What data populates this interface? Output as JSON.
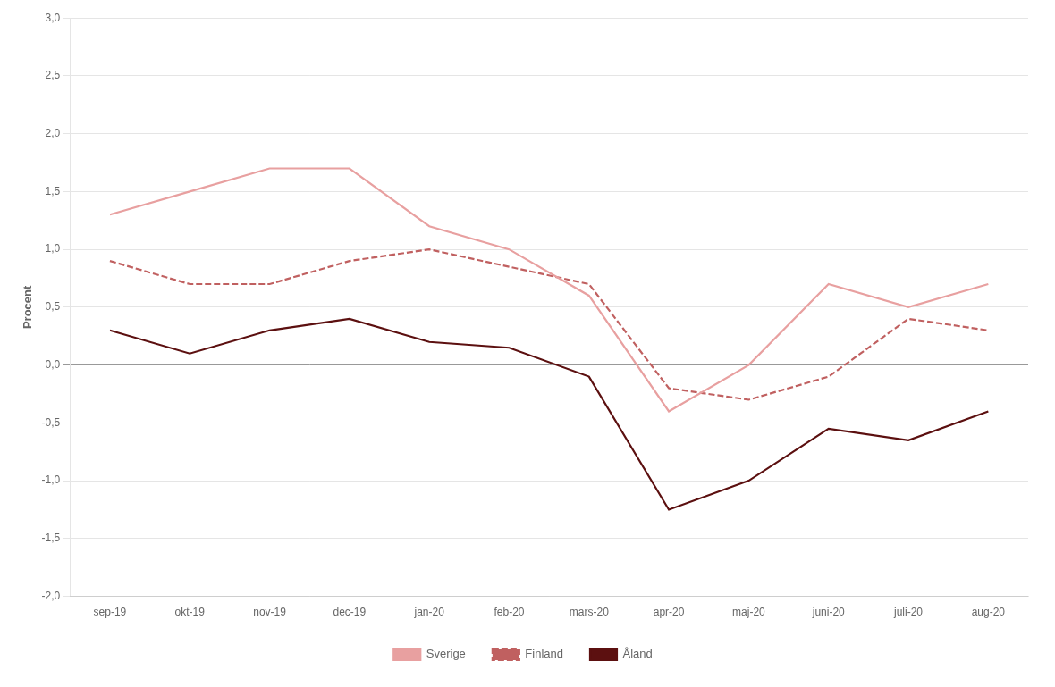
{
  "chart_data": {
    "type": "line",
    "categories": [
      "sep-19",
      "okt-19",
      "nov-19",
      "dec-19",
      "jan-20",
      "feb-20",
      "mars-20",
      "apr-20",
      "maj-20",
      "juni-20",
      "juli-20",
      "aug-20"
    ],
    "series": [
      {
        "name": "Sverige",
        "color": "#E8A0A0",
        "line_style": "solid",
        "values": [
          1.3,
          1.5,
          1.7,
          1.7,
          1.2,
          1.0,
          0.6,
          -0.4,
          0.0,
          0.7,
          0.5,
          0.7
        ]
      },
      {
        "name": "Finland",
        "color": "#C06060",
        "line_style": "dashed",
        "values": [
          0.9,
          0.7,
          0.7,
          0.9,
          1.0,
          0.85,
          0.7,
          -0.2,
          -0.3,
          -0.1,
          0.4,
          0.3
        ]
      },
      {
        "name": "Åland",
        "color": "#5C1010",
        "line_style": "solid",
        "values": [
          0.3,
          0.1,
          0.3,
          0.4,
          0.2,
          0.15,
          -0.1,
          -1.25,
          -1.0,
          -0.55,
          -0.65,
          -0.4
        ]
      }
    ],
    "ylabel": "Procent",
    "ylim": [
      -2.0,
      3.0
    ],
    "yticks": [
      {
        "value": -2.0,
        "label": "-2,0"
      },
      {
        "value": -1.5,
        "label": "-1,5"
      },
      {
        "value": -1.0,
        "label": "-1,0"
      },
      {
        "value": -0.5,
        "label": "-0,5"
      },
      {
        "value": 0.0,
        "label": "0,0"
      },
      {
        "value": 0.5,
        "label": "0,5"
      },
      {
        "value": 1.0,
        "label": "1,0"
      },
      {
        "value": 1.5,
        "label": "1,5"
      },
      {
        "value": 2.0,
        "label": "2,0"
      },
      {
        "value": 2.5,
        "label": "2,5"
      },
      {
        "value": 3.0,
        "label": "3,0"
      }
    ],
    "grid": true,
    "legend": "bottom"
  }
}
